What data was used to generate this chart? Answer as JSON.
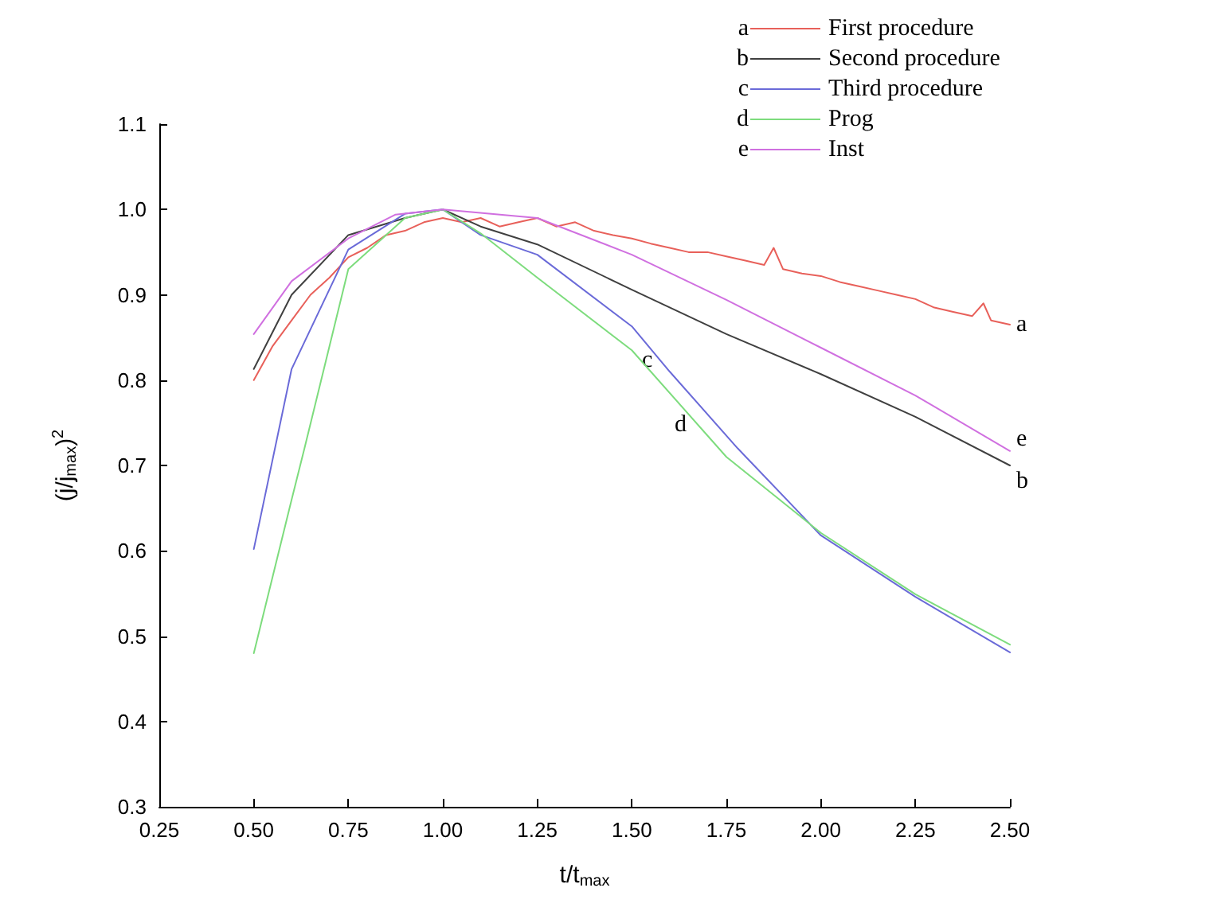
{
  "chart_data": {
    "type": "line",
    "xlabel": "t/t$_{max}$",
    "ylabel": "(j/j$_{max}$)$^{2}$",
    "xlim": [
      0.25,
      2.5
    ],
    "xticks": [
      0.25,
      {
        "value": 0.5,
        "label": "0.50"
      },
      0.75,
      {
        "value": 1,
        "label": "1.00"
      },
      1.25,
      {
        "value": 1.5,
        "label": "1.50"
      },
      1.75,
      {
        "value": 2,
        "label": "2.00"
      },
      2.25,
      {
        "value": 2.5,
        "label": "2.50"
      }
    ],
    "ylim": [
      0.3,
      1.1
    ],
    "yticks": [
      0.3,
      0.4,
      0.5,
      0.6,
      0.7,
      0.8,
      0.9,
      {
        "value": 1,
        "label": "1.0"
      },
      1.1
    ],
    "grid": false,
    "legend": "top right",
    "marker": "none",
    "line_style": "solid",
    "series": [
      {
        "name": "First procedure",
        "color": "#e8605a",
        "x": [
          0.5,
          0.55,
          0.6,
          0.65,
          0.7,
          0.75,
          0.8,
          0.85,
          0.9,
          0.95,
          1.0,
          1.05,
          1.1,
          1.15,
          1.2,
          1.25,
          1.3,
          1.35,
          1.4,
          1.45,
          1.5,
          1.55,
          1.6,
          1.65,
          1.7,
          1.75,
          1.8,
          1.85,
          1.875,
          1.9,
          1.95,
          2.0,
          2.05,
          2.1,
          2.15,
          2.2,
          2.25,
          2.3,
          2.35,
          2.4,
          2.43,
          2.45,
          2.5
        ],
        "values": [
          0.8,
          0.84,
          0.87,
          0.9,
          0.92,
          0.944,
          0.955,
          0.97,
          0.975,
          0.985,
          0.99,
          0.985,
          0.99,
          0.98,
          0.985,
          0.99,
          0.98,
          0.985,
          0.975,
          0.97,
          0.966,
          0.96,
          0.955,
          0.95,
          0.95,
          0.945,
          0.94,
          0.935,
          0.955,
          0.93,
          0.925,
          0.922,
          0.915,
          0.91,
          0.905,
          0.9,
          0.895,
          0.885,
          0.88,
          0.875,
          0.89,
          0.87,
          0.865
        ]
      },
      {
        "name": "Second procedure",
        "color": "#404040",
        "x": [
          0.5,
          0.6,
          0.75,
          0.9,
          1.0,
          1.1,
          1.25,
          1.5,
          1.75,
          2.0,
          2.25,
          2.5
        ],
        "values": [
          0.813,
          0.9,
          0.97,
          0.99,
          1.0,
          0.98,
          0.959,
          0.906,
          0.854,
          0.807,
          0.757,
          0.7
        ]
      },
      {
        "name": "Third procedure",
        "color": "#6a6ad8",
        "x": [
          0.5,
          0.6,
          0.75,
          0.9,
          1.0,
          1.1,
          1.25,
          1.5,
          1.6,
          1.78,
          2.0,
          2.25,
          2.5
        ],
        "values": [
          0.602,
          0.813,
          0.953,
          0.995,
          1.0,
          0.97,
          0.947,
          0.863,
          0.81,
          0.72,
          0.618,
          0.546,
          0.481
        ]
      },
      {
        "name": "Prog",
        "color": "#7ddc7d",
        "x": [
          0.5,
          0.6,
          0.634,
          0.75,
          0.9,
          1.0,
          1.1,
          1.25,
          1.5,
          1.75,
          2.0,
          2.25,
          2.5
        ],
        "values": [
          0.48,
          0.66,
          0.72,
          0.93,
          0.99,
          1.0,
          0.972,
          0.92,
          0.835,
          0.71,
          0.621,
          0.549,
          0.49
        ]
      },
      {
        "name": "Inst",
        "color": "#d070e0",
        "x": [
          0.5,
          0.6,
          0.75,
          0.875,
          1.0,
          1.25,
          1.5,
          1.75,
          2.0,
          2.25,
          2.5
        ],
        "values": [
          0.854,
          0.916,
          0.966,
          0.994,
          1.0,
          0.99,
          0.947,
          0.894,
          0.838,
          0.782,
          0.717
        ]
      }
    ],
    "annotations": [
      "a",
      "b",
      "c",
      "d",
      "e",
      {
        "text": "a",
        "x": 2.5,
        "y": 0.865
      },
      {
        "text": "b",
        "x": 2.5,
        "y": 0.695
      },
      {
        "text": "c",
        "x": 1.58,
        "y": 0.823
      },
      {
        "text": "d",
        "x": 1.67,
        "y": 0.748
      },
      {
        "text": "e",
        "x": 2.5,
        "y": 0.717
      }
    ]
  }
}
